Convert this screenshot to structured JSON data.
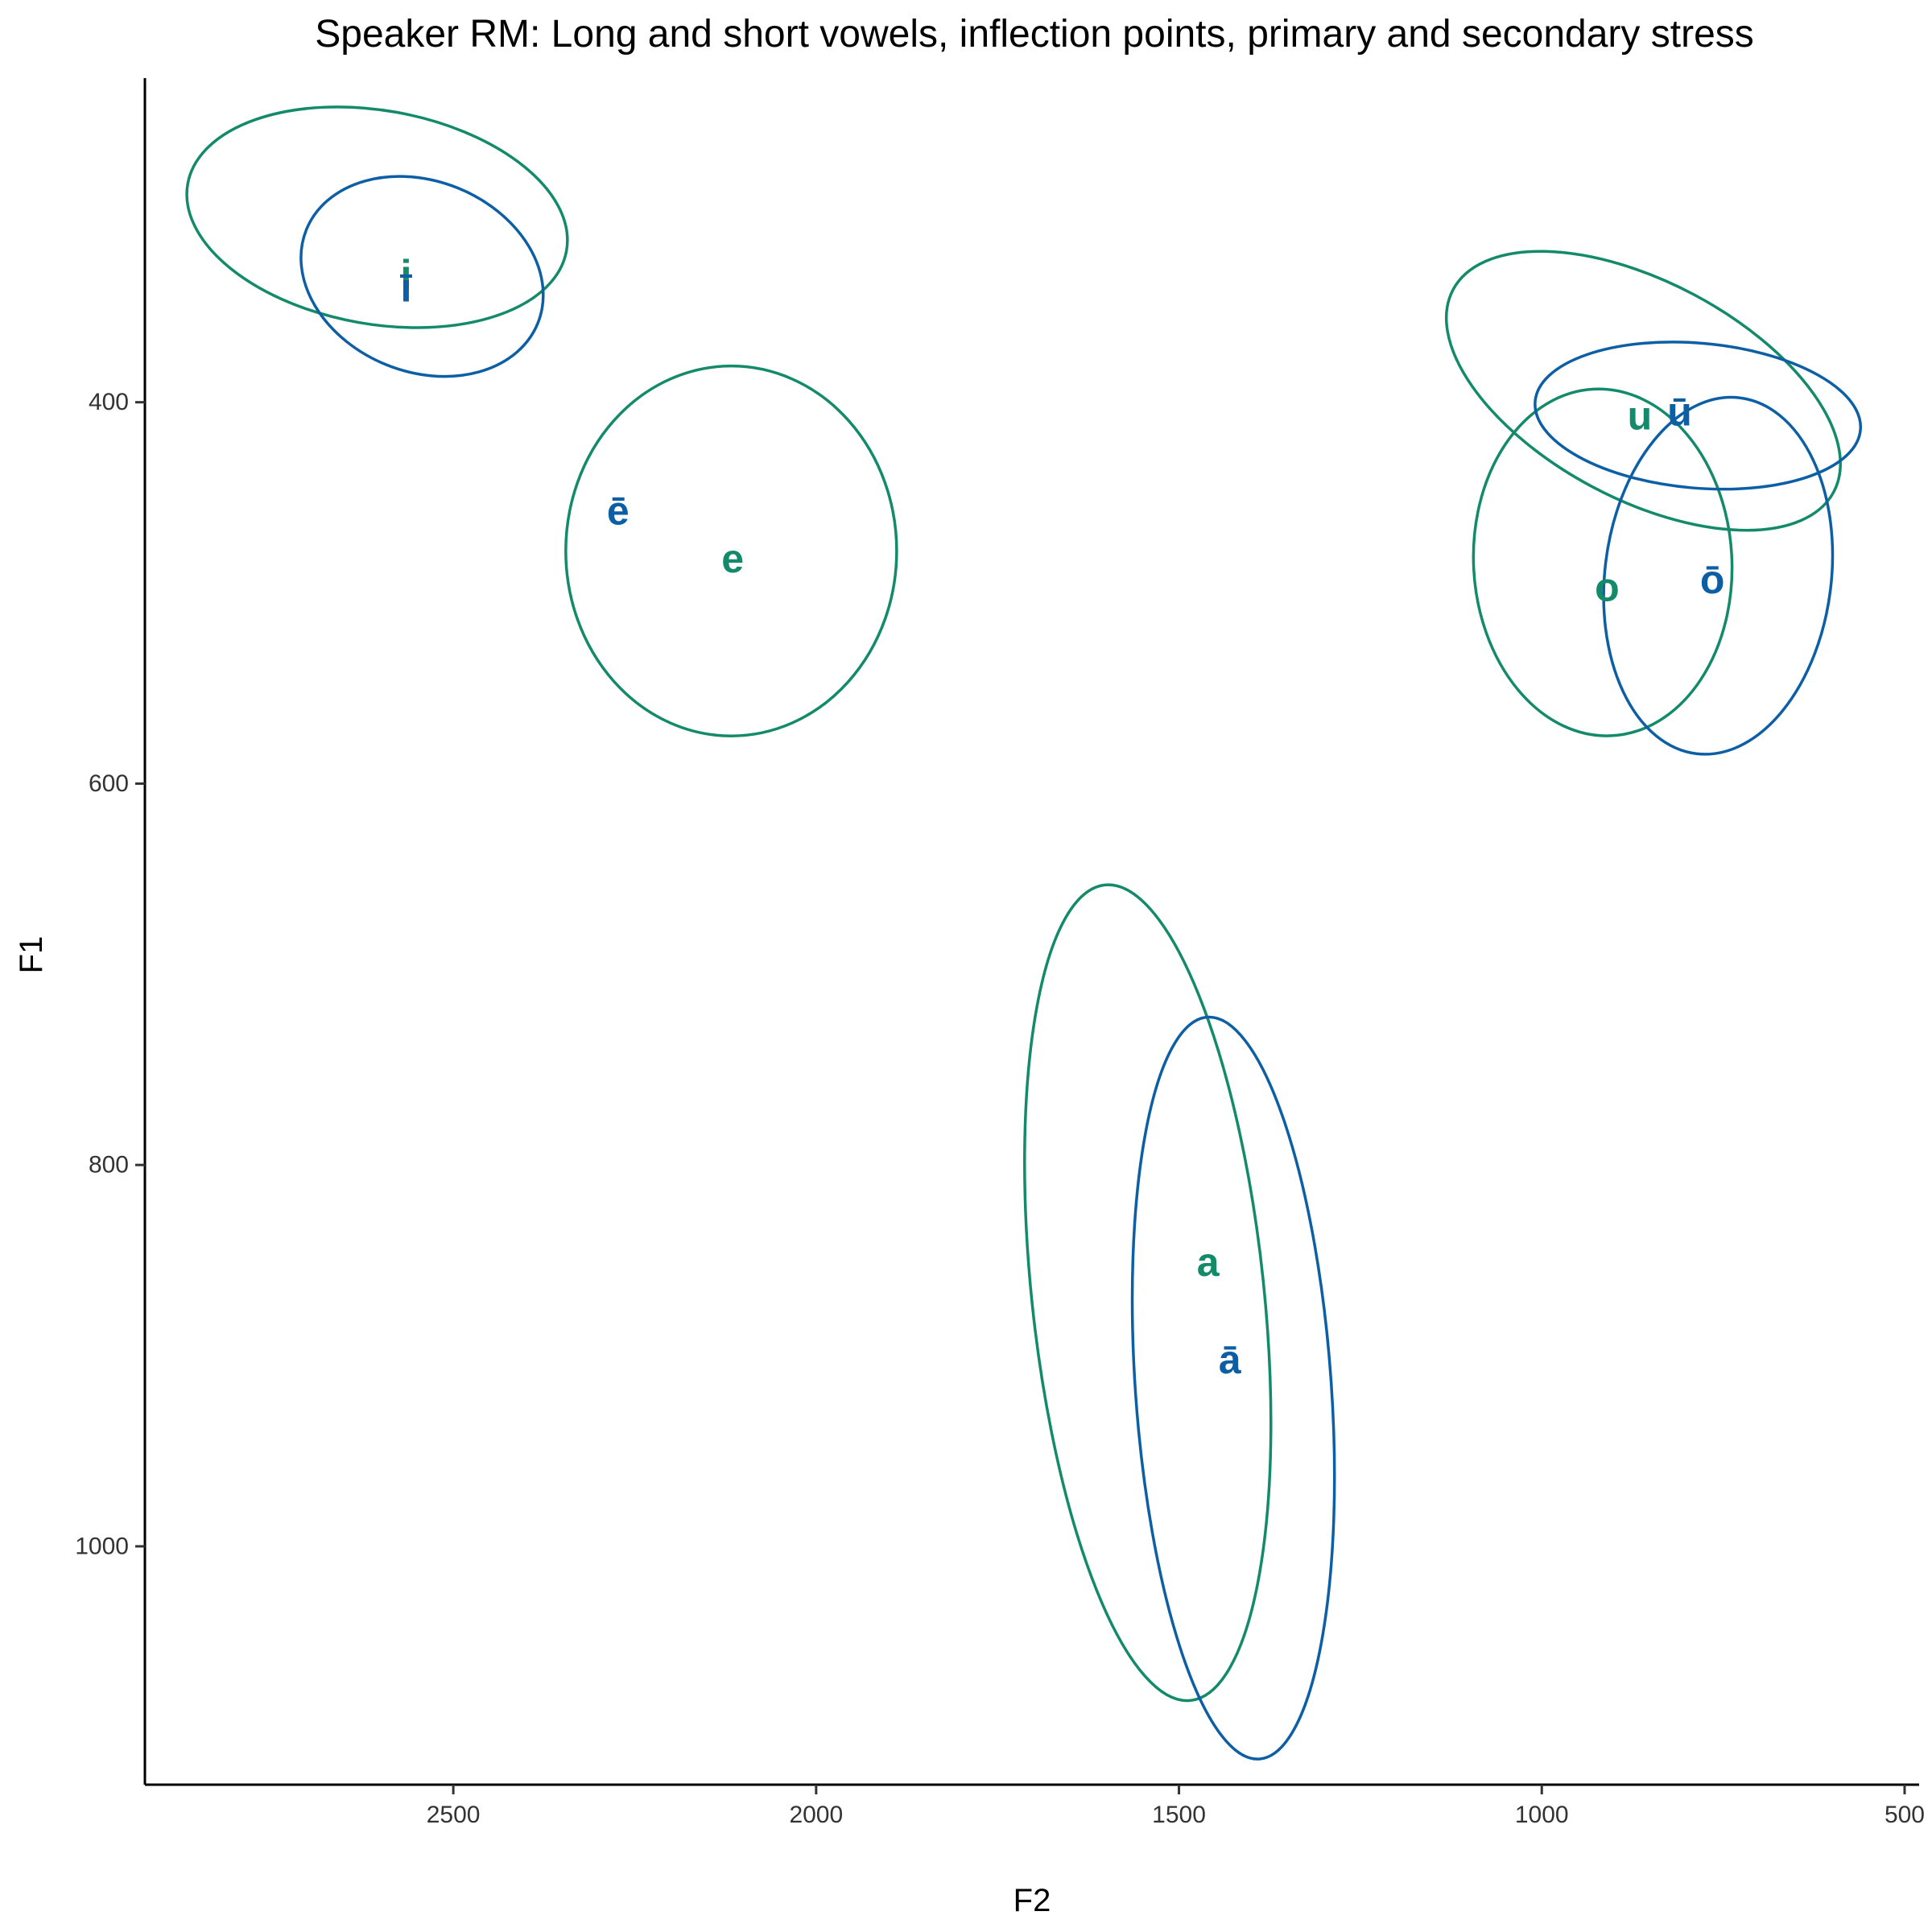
{
  "chart_data": {
    "type": "scatter",
    "title": "Speaker RM: Long and short vowels, inflection points, primary and secondary stress",
    "xlabel": "F2",
    "ylabel": "F1",
    "x_axis": {
      "reversed": true,
      "ticks": [
        2500,
        2000,
        1500,
        1000,
        500
      ],
      "lim": [
        2925,
        480
      ]
    },
    "y_axis": {
      "reversed": true,
      "ticks": [
        400,
        600,
        800,
        1000
      ],
      "lim": [
        230,
        1125
      ]
    },
    "grid": false,
    "legend": "none",
    "colors": {
      "short": "#138a6a",
      "long": "#0d5fa5"
    },
    "series": [
      {
        "kind": "short",
        "points": [
          {
            "label": "i",
            "F2": 2565,
            "F1": 333
          },
          {
            "label": "e",
            "F2": 2115,
            "F1": 482
          },
          {
            "label": "a",
            "F2": 1460,
            "F1": 851
          },
          {
            "label": "o",
            "F2": 910,
            "F1": 497
          },
          {
            "label": "u",
            "F2": 865,
            "F1": 407
          }
        ],
        "ellipses": [
          {
            "vowel": "i",
            "cx": 2605,
            "cy": 303,
            "rx": 265,
            "ry": 56,
            "angle": 10
          },
          {
            "vowel": "e",
            "cx": 2117,
            "cy": 478,
            "rx": 228,
            "ry": 97,
            "angle": 0
          },
          {
            "vowel": "a",
            "cx": 1543,
            "cy": 867,
            "rx": 160,
            "ry": 215,
            "angle": -6
          },
          {
            "vowel": "o",
            "cx": 916,
            "cy": 484,
            "rx": 178,
            "ry": 91,
            "angle": -3
          },
          {
            "vowel": "u",
            "cx": 860,
            "cy": 394,
            "rx": 297,
            "ry": 57,
            "angle": 28
          }
        ]
      },
      {
        "kind": "long",
        "points": [
          {
            "label": "ī",
            "F2": 2565,
            "F1": 340
          },
          {
            "label": "ē",
            "F2": 2273,
            "F1": 457
          },
          {
            "label": "ā",
            "F2": 1430,
            "F1": 902
          },
          {
            "label": "ō",
            "F2": 765,
            "F1": 493
          },
          {
            "label": "ū",
            "F2": 810,
            "F1": 405
          }
        ],
        "ellipses": [
          {
            "vowel": "ī",
            "cx": 2543,
            "cy": 334,
            "rx": 172,
            "ry": 50,
            "angle": 22
          },
          {
            "vowel": "ā",
            "cx": 1425,
            "cy": 917,
            "rx": 135,
            "ry": 195,
            "angle": -4
          },
          {
            "vowel": "ō",
            "cx": 757,
            "cy": 491,
            "rx": 156,
            "ry": 94,
            "angle": 7
          },
          {
            "vowel": "ū",
            "cx": 785,
            "cy": 407,
            "rx": 225,
            "ry": 38,
            "angle": 5
          }
        ]
      }
    ]
  }
}
